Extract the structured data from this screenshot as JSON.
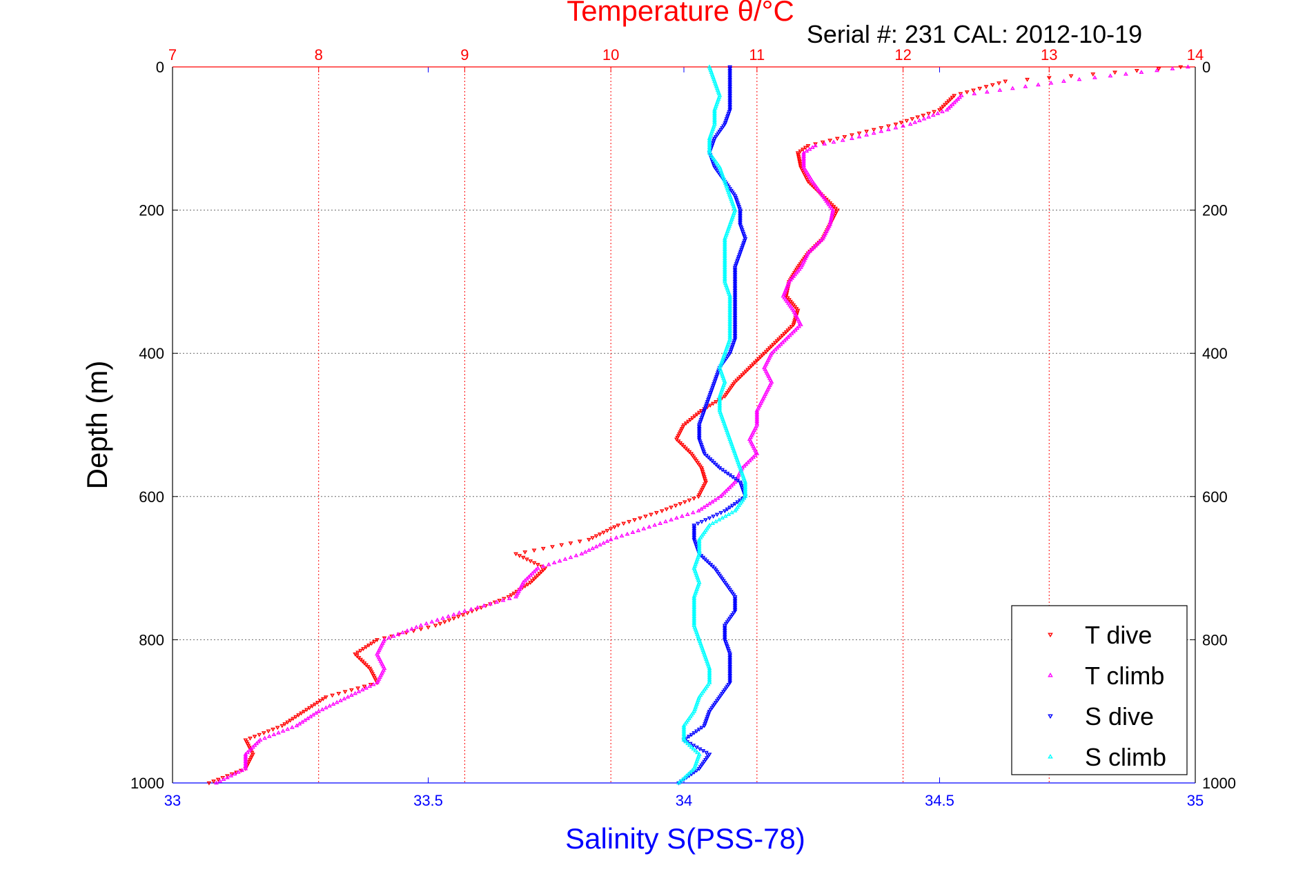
{
  "chart_data": {
    "type": "scatter",
    "title": "Temperature θ/°C",
    "subtitle": "Serial #: 231   CAL: 2012-10-19",
    "ylabel": "Depth (m)",
    "xlabel_bottom": "Salinity S(PSS-78)",
    "x_top_range": [
      7,
      14
    ],
    "x_bottom_range": [
      33,
      35
    ],
    "y_range": [
      0,
      1000
    ],
    "y_reversed": true,
    "x_top_ticks": [
      7,
      8,
      9,
      10,
      11,
      12,
      13,
      14
    ],
    "x_bottom_ticks": [
      33,
      33.5,
      34,
      34.5,
      35
    ],
    "y_ticks": [
      0,
      200,
      400,
      600,
      800,
      1000
    ],
    "grid": true,
    "legend_position": "bottom-right",
    "colors": {
      "temperature_axis": "#ff0000",
      "salinity_axis": "#0000ff",
      "grid": "#666666"
    },
    "series": [
      {
        "name": "T dive",
        "axis": "top",
        "color": "#ff0000",
        "marker": "triangle-down",
        "depth": [
          0,
          20,
          40,
          60,
          80,
          100,
          110,
          120,
          140,
          160,
          180,
          200,
          220,
          240,
          260,
          280,
          300,
          320,
          340,
          360,
          380,
          400,
          420,
          440,
          460,
          480,
          500,
          520,
          540,
          560,
          580,
          600,
          620,
          640,
          660,
          680,
          700,
          720,
          740,
          760,
          780,
          800,
          820,
          840,
          860,
          880,
          900,
          920,
          940,
          960,
          980,
          1000
        ],
        "values": [
          13.9,
          12.7,
          12.35,
          12.25,
          11.95,
          11.55,
          11.35,
          11.28,
          11.3,
          11.35,
          11.45,
          11.55,
          11.5,
          11.45,
          11.35,
          11.28,
          11.22,
          11.2,
          11.28,
          11.25,
          11.15,
          11.05,
          10.95,
          10.85,
          10.78,
          10.62,
          10.5,
          10.45,
          10.55,
          10.62,
          10.65,
          10.6,
          10.35,
          10.05,
          9.85,
          9.35,
          9.55,
          9.45,
          9.3,
          9.05,
          8.8,
          8.4,
          8.25,
          8.35,
          8.4,
          8.05,
          7.9,
          7.75,
          7.5,
          7.55,
          7.5,
          7.25
        ]
      },
      {
        "name": "T climb",
        "axis": "top",
        "color": "#ff00ff",
        "marker": "triangle-up",
        "depth": [
          0,
          20,
          40,
          60,
          80,
          100,
          110,
          120,
          140,
          160,
          180,
          200,
          220,
          240,
          260,
          280,
          300,
          320,
          340,
          360,
          380,
          400,
          420,
          440,
          460,
          480,
          500,
          520,
          540,
          560,
          580,
          600,
          620,
          640,
          660,
          680,
          700,
          720,
          740,
          760,
          780,
          800,
          820,
          840,
          860,
          880,
          900,
          920,
          940,
          960,
          980,
          1000
        ],
        "values": [
          13.95,
          13.1,
          12.4,
          12.3,
          12.05,
          11.65,
          11.4,
          11.32,
          11.32,
          11.38,
          11.45,
          11.52,
          11.5,
          11.45,
          11.35,
          11.3,
          11.22,
          11.18,
          11.25,
          11.3,
          11.2,
          11.1,
          11.05,
          11.1,
          11.05,
          11.0,
          11.0,
          10.95,
          11.0,
          10.9,
          10.85,
          10.75,
          10.6,
          10.3,
          10.0,
          9.8,
          9.5,
          9.4,
          9.35,
          9.0,
          8.7,
          8.45,
          8.4,
          8.45,
          8.4,
          8.2,
          8.0,
          7.85,
          7.6,
          7.5,
          7.5,
          7.3
        ]
      },
      {
        "name": "S dive",
        "axis": "bottom",
        "color": "#0000ff",
        "marker": "triangle-down",
        "depth": [
          0,
          20,
          40,
          60,
          80,
          100,
          120,
          140,
          160,
          180,
          200,
          220,
          240,
          260,
          280,
          300,
          320,
          340,
          360,
          380,
          400,
          420,
          440,
          460,
          480,
          500,
          520,
          540,
          560,
          580,
          600,
          620,
          640,
          660,
          680,
          700,
          720,
          740,
          760,
          780,
          800,
          820,
          840,
          860,
          880,
          900,
          920,
          940,
          960,
          980,
          1000
        ],
        "values": [
          34.09,
          34.09,
          34.09,
          34.09,
          34.08,
          34.06,
          34.05,
          34.06,
          34.08,
          34.1,
          34.11,
          34.11,
          34.12,
          34.11,
          34.1,
          34.1,
          34.1,
          34.1,
          34.1,
          34.1,
          34.09,
          34.07,
          34.06,
          34.05,
          34.04,
          34.03,
          34.03,
          34.04,
          34.07,
          34.11,
          34.12,
          34.08,
          34.02,
          34.02,
          34.03,
          34.06,
          34.08,
          34.1,
          34.1,
          34.08,
          34.08,
          34.09,
          34.09,
          34.09,
          34.07,
          34.05,
          34.04,
          34.0,
          34.05,
          34.03,
          33.99
        ]
      },
      {
        "name": "S climb",
        "axis": "bottom",
        "color": "#00ffff",
        "marker": "triangle-up",
        "depth": [
          0,
          20,
          40,
          60,
          80,
          100,
          120,
          140,
          160,
          180,
          200,
          220,
          240,
          260,
          280,
          300,
          320,
          340,
          360,
          380,
          400,
          420,
          440,
          460,
          480,
          500,
          520,
          540,
          560,
          580,
          600,
          620,
          640,
          660,
          680,
          700,
          720,
          740,
          760,
          780,
          800,
          820,
          840,
          860,
          880,
          900,
          920,
          940,
          960,
          980,
          1000
        ],
        "values": [
          34.05,
          34.06,
          34.07,
          34.06,
          34.06,
          34.05,
          34.05,
          34.07,
          34.08,
          34.09,
          34.1,
          34.09,
          34.08,
          34.08,
          34.08,
          34.08,
          34.09,
          34.09,
          34.09,
          34.09,
          34.08,
          34.07,
          34.08,
          34.07,
          34.07,
          34.08,
          34.09,
          34.1,
          34.11,
          34.12,
          34.12,
          34.1,
          34.05,
          34.03,
          34.03,
          34.02,
          34.03,
          34.02,
          34.02,
          34.02,
          34.03,
          34.04,
          34.05,
          34.05,
          34.03,
          34.02,
          34.0,
          34.0,
          34.03,
          34.02,
          33.99
        ]
      }
    ],
    "legend_labels": [
      "T dive",
      "T climb",
      "S dive",
      "S climb"
    ]
  }
}
